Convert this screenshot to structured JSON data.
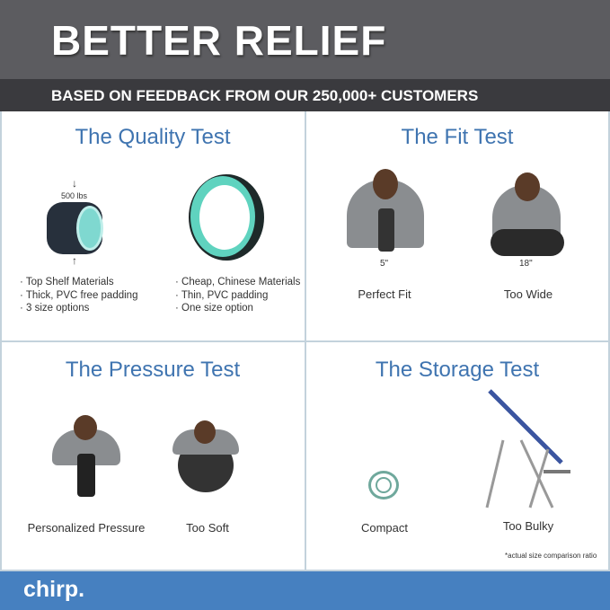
{
  "header": {
    "title": "BETTER RELIEF",
    "subtitle": "BASED ON FEEDBACK FROM OUR 250,000+ CUSTOMERS"
  },
  "quality": {
    "title": "The Quality Test",
    "weight": "500 lbs",
    "left": [
      "· Top Shelf Materials",
      "· Thick, PVC free padding",
      "· 3 size options"
    ],
    "right": [
      "· Cheap, Chinese Materials",
      "· Thin, PVC padding",
      "· One size option"
    ]
  },
  "fit": {
    "title": "The Fit Test",
    "left_measure": "5\"",
    "right_measure": "18\"",
    "left_label": "Perfect Fit",
    "right_label": "Too Wide"
  },
  "pressure": {
    "title": "The Pressure Test",
    "left_label": "Personalized Pressure",
    "right_label": "Too Soft"
  },
  "storage": {
    "title": "The Storage Test",
    "left_label": "Compact",
    "right_label": "Too Bulky",
    "note": "*actual size comparison ratio"
  },
  "footer": {
    "logo": "chirp."
  },
  "colors": {
    "accent": "#3f74b0",
    "footer": "#4680c0",
    "header": "#5c5c60",
    "subheader": "#3a3a3e",
    "teal": "#5fd3bf"
  }
}
